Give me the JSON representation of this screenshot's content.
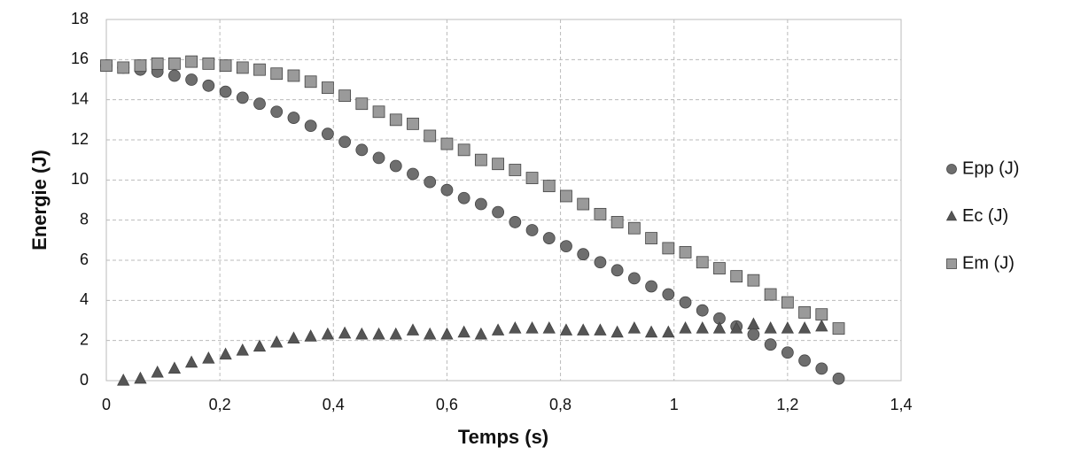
{
  "chart_data": {
    "type": "scatter",
    "xlabel": "Temps (s)",
    "ylabel": "Energie (J)",
    "xlim": [
      0,
      1.4
    ],
    "xticks": [
      0,
      {
        "value": 0.2,
        "label": "0,2"
      },
      {
        "value": 0.4,
        "label": "0,4"
      },
      {
        "value": 0.6,
        "label": "0,6"
      },
      {
        "value": 0.8,
        "label": "0,8"
      },
      1,
      {
        "value": 1.2,
        "label": "1,2"
      },
      {
        "value": 1.4,
        "label": "1,4"
      }
    ],
    "ylim": [
      0,
      18
    ],
    "yticks": [
      0,
      2,
      4,
      6,
      8,
      10,
      12,
      14,
      16,
      18
    ],
    "grid": true,
    "legend": "right",
    "series": [
      {
        "name": "Epp (J)",
        "color": "#6e6e6e",
        "marker": "circle",
        "x": [
          0,
          0.03,
          0.06,
          0.09,
          0.12,
          0.15,
          0.18,
          0.21,
          0.24,
          0.27,
          0.3,
          0.33,
          0.36,
          0.39,
          0.42,
          0.45,
          0.48,
          0.51,
          0.54,
          0.57,
          0.6,
          0.63,
          0.66,
          0.69,
          0.72,
          0.75,
          0.78,
          0.81,
          0.84,
          0.87,
          0.9,
          0.93,
          0.96,
          0.99,
          1.02,
          1.05,
          1.08,
          1.11,
          1.14,
          1.17,
          1.2,
          1.23,
          1.26,
          1.29
        ],
        "values": [
          15.7,
          15.6,
          15.5,
          15.4,
          15.2,
          15.0,
          14.7,
          14.4,
          14.1,
          13.8,
          13.4,
          13.1,
          12.7,
          12.3,
          11.9,
          11.5,
          11.1,
          10.7,
          10.3,
          9.9,
          9.5,
          9.1,
          8.8,
          8.4,
          7.9,
          7.5,
          7.1,
          6.7,
          6.3,
          5.9,
          5.5,
          5.1,
          4.7,
          4.3,
          3.9,
          3.5,
          3.1,
          2.7,
          2.3,
          1.8,
          1.4,
          1.0,
          0.6,
          0.1
        ]
      },
      {
        "name": "Ec (J)",
        "color": "#555555",
        "marker": "triangle",
        "x": [
          0.03,
          0.06,
          0.09,
          0.12,
          0.15,
          0.18,
          0.21,
          0.24,
          0.27,
          0.3,
          0.33,
          0.36,
          0.39,
          0.42,
          0.45,
          0.48,
          0.51,
          0.54,
          0.57,
          0.6,
          0.63,
          0.66,
          0.69,
          0.72,
          0.75,
          0.78,
          0.81,
          0.84,
          0.87,
          0.9,
          0.93,
          0.96,
          0.99,
          1.02,
          1.05,
          1.08,
          1.11,
          1.14,
          1.17,
          1.2,
          1.23,
          1.26
        ],
        "values": [
          0,
          0.1,
          0.4,
          0.6,
          0.9,
          1.1,
          1.3,
          1.5,
          1.7,
          1.9,
          2.1,
          2.2,
          2.3,
          2.35,
          2.3,
          2.3,
          2.3,
          2.5,
          2.3,
          2.3,
          2.4,
          2.3,
          2.5,
          2.6,
          2.6,
          2.6,
          2.5,
          2.5,
          2.5,
          2.4,
          2.6,
          2.4,
          2.4,
          2.6,
          2.6,
          2.6,
          2.6,
          2.8,
          2.6,
          2.6,
          2.6,
          2.7
        ]
      },
      {
        "name": "Em (J)",
        "color": "#9a9a9a",
        "marker": "square",
        "x": [
          0,
          0.03,
          0.06,
          0.09,
          0.12,
          0.15,
          0.18,
          0.21,
          0.24,
          0.27,
          0.3,
          0.33,
          0.36,
          0.39,
          0.42,
          0.45,
          0.48,
          0.51,
          0.54,
          0.57,
          0.6,
          0.63,
          0.66,
          0.69,
          0.72,
          0.75,
          0.78,
          0.81,
          0.84,
          0.87,
          0.9,
          0.93,
          0.96,
          0.99,
          1.02,
          1.05,
          1.08,
          1.11,
          1.14,
          1.17,
          1.2,
          1.23,
          1.26,
          1.29
        ],
        "values": [
          15.7,
          15.6,
          15.7,
          15.8,
          15.8,
          15.9,
          15.8,
          15.7,
          15.6,
          15.5,
          15.3,
          15.2,
          14.9,
          14.6,
          14.2,
          13.8,
          13.4,
          13.0,
          12.8,
          12.2,
          11.8,
          11.5,
          11.0,
          10.8,
          10.5,
          10.1,
          9.7,
          9.2,
          8.8,
          8.3,
          7.9,
          7.6,
          7.1,
          6.6,
          6.4,
          5.9,
          5.6,
          5.2,
          5.0,
          4.3,
          3.9,
          3.4,
          3.3,
          2.6
        ]
      }
    ]
  }
}
